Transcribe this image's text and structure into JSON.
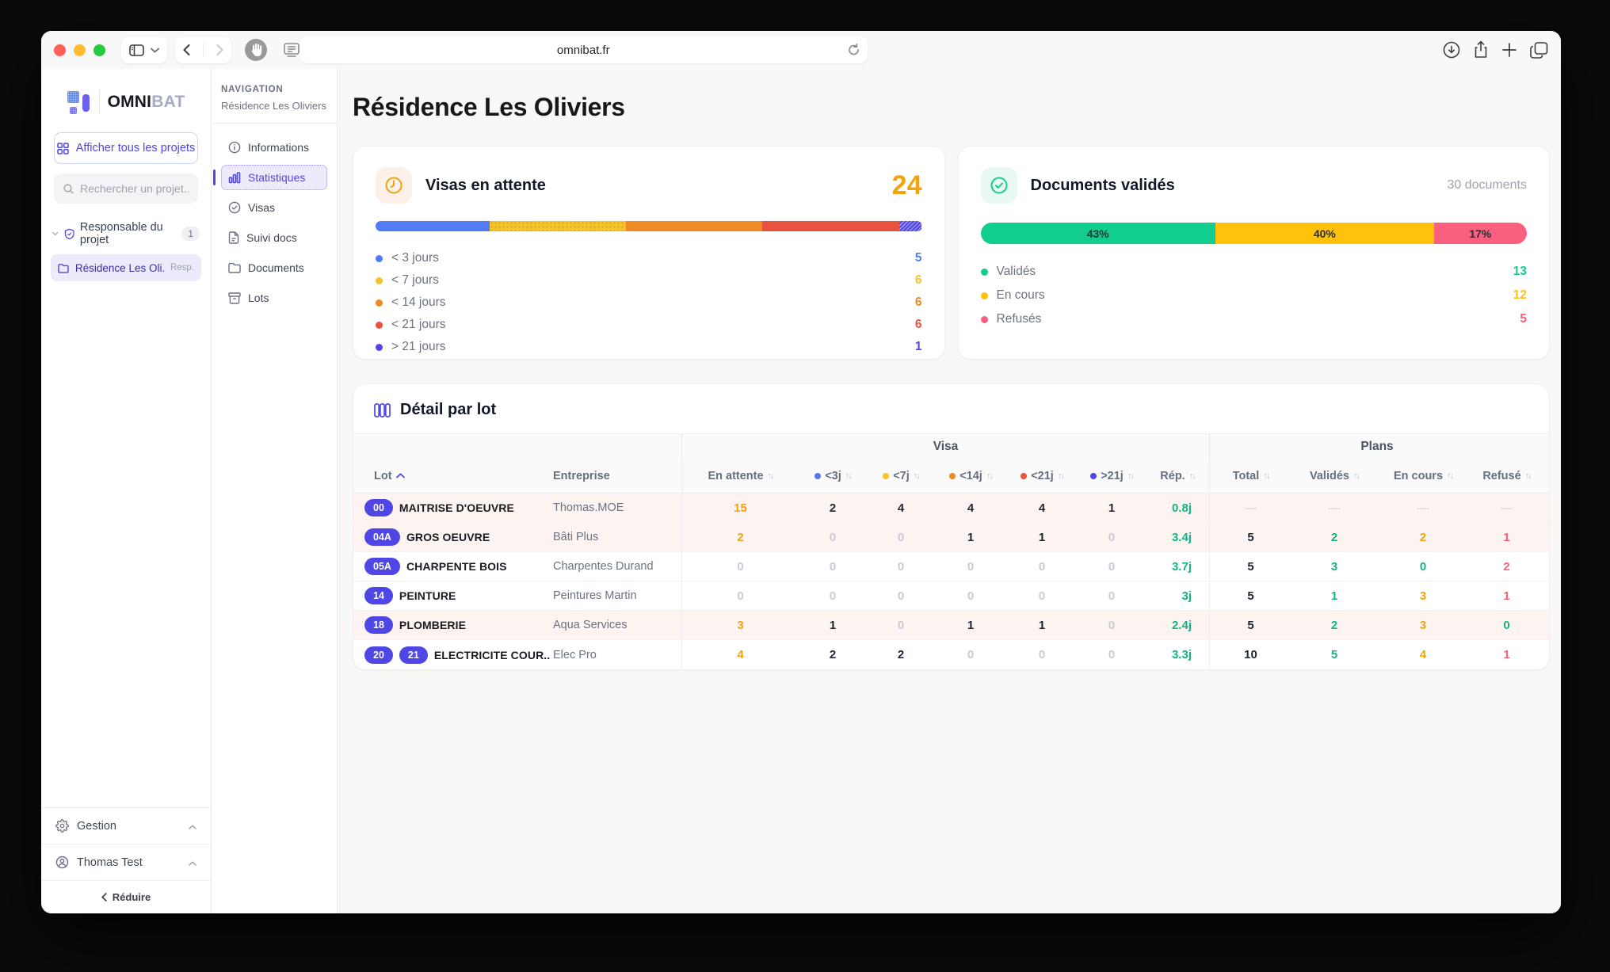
{
  "browser": {
    "url": "omnibat.fr"
  },
  "sidebar": {
    "logo_main": "OMNI",
    "logo_accent": "BAT",
    "show_all": "Afficher tous les projets",
    "search_placeholder": "Rechercher un projet...",
    "group_label": "Responsable du projet",
    "group_count": "1",
    "project_name": "Résidence Les Oli...",
    "project_tag": "Resp.",
    "footer_items": [
      {
        "label": "Gestion",
        "icon": "gear"
      },
      {
        "label": "Thomas Test",
        "icon": "user"
      }
    ],
    "collapse_label": "Réduire"
  },
  "nav": {
    "section_label": "NAVIGATION",
    "project": "Résidence Les Oliviers",
    "items": [
      {
        "label": "Informations",
        "icon": "info",
        "active": false
      },
      {
        "label": "Statistiques",
        "icon": "chart",
        "active": true
      },
      {
        "label": "Visas",
        "icon": "check-circle",
        "active": false
      },
      {
        "label": "Suivi docs",
        "icon": "file",
        "active": false
      },
      {
        "label": "Documents",
        "icon": "folder",
        "active": false
      },
      {
        "label": "Lots",
        "icon": "box",
        "active": false
      }
    ]
  },
  "main": {
    "page_title": "Résidence Les Oliviers",
    "visas_card": {
      "title": "Visas en attente",
      "total": "24",
      "segments": [
        {
          "label": "< 3 jours",
          "value": 5,
          "color": "#527BF4",
          "pattern": "none"
        },
        {
          "label": "< 7 jours",
          "value": 6,
          "color": "#F6C32B",
          "pattern": "dots"
        },
        {
          "label": "< 14 jours",
          "value": 6,
          "color": "#F08A24",
          "pattern": "none"
        },
        {
          "label": "< 21 jours",
          "value": 6,
          "color": "#E8533F",
          "pattern": "none"
        },
        {
          "label": "> 21 jours",
          "value": 1,
          "color": "#4F46E5",
          "pattern": "hatch"
        }
      ]
    },
    "docs_card": {
      "title": "Documents validés",
      "subtitle": "30 documents",
      "segments": [
        {
          "label": "Validés",
          "value": "13",
          "pct": 43,
          "pct_label": "43%",
          "color": "#12CE8E"
        },
        {
          "label": "En cours",
          "value": "12",
          "pct": 40,
          "pct_label": "40%",
          "color": "#FFC10A"
        },
        {
          "label": "Refusés",
          "value": "5",
          "pct": 17,
          "pct_label": "17%",
          "color": "#FA5F7E"
        }
      ]
    },
    "table": {
      "title": "Détail par lot",
      "group_visa": "Visa",
      "group_plans": "Plans",
      "col_lot": "Lot",
      "col_entreprise": "Entreprise",
      "visa_cols": [
        {
          "label": "En attente",
          "dot": ""
        },
        {
          "label": "<3j",
          "dot": "#527BF4"
        },
        {
          "label": "<7j",
          "dot": "#F6C32B"
        },
        {
          "label": "<14j",
          "dot": "#F08A24"
        },
        {
          "label": "<21j",
          "dot": "#E8533F"
        },
        {
          "label": ">21j",
          "dot": "#4F46E5"
        },
        {
          "label": "Rép.",
          "dot": ""
        }
      ],
      "plans_cols": [
        "Total",
        "Validés",
        "En cours",
        "Refusé"
      ],
      "rows": [
        {
          "badges": [
            "00"
          ],
          "name": "MAITRISE D'OEUVRE",
          "entreprise": "Thomas.MOE",
          "tint": true,
          "cells": [
            {
              "v": "15",
              "k": "amber"
            },
            {
              "v": "2",
              "k": "dark"
            },
            {
              "v": "4",
              "k": "dark"
            },
            {
              "v": "4",
              "k": "dark"
            },
            {
              "v": "4",
              "k": "dark"
            },
            {
              "v": "1",
              "k": "dark"
            },
            {
              "v": "0.8j",
              "k": "green"
            },
            {
              "v": "—",
              "k": "dash"
            },
            {
              "v": "—",
              "k": "dash"
            },
            {
              "v": "—",
              "k": "dash"
            },
            {
              "v": "—",
              "k": "dash"
            }
          ]
        },
        {
          "badges": [
            "04A"
          ],
          "name": "GROS OEUVRE",
          "entreprise": "Bâti Plus",
          "tint": true,
          "cells": [
            {
              "v": "2",
              "k": "amber"
            },
            {
              "v": "0",
              "k": "muted"
            },
            {
              "v": "0",
              "k": "muted"
            },
            {
              "v": "1",
              "k": "dark"
            },
            {
              "v": "1",
              "k": "dark"
            },
            {
              "v": "0",
              "k": "muted"
            },
            {
              "v": "3.4j",
              "k": "green"
            },
            {
              "v": "5",
              "k": "dark"
            },
            {
              "v": "2",
              "k": "green"
            },
            {
              "v": "2",
              "k": "amber"
            },
            {
              "v": "1",
              "k": "pink"
            }
          ]
        },
        {
          "badges": [
            "05A"
          ],
          "name": "CHARPENTE BOIS",
          "entreprise": "Charpentes Durand",
          "tint": false,
          "cells": [
            {
              "v": "0",
              "k": "muted"
            },
            {
              "v": "0",
              "k": "muted"
            },
            {
              "v": "0",
              "k": "muted"
            },
            {
              "v": "0",
              "k": "muted"
            },
            {
              "v": "0",
              "k": "muted"
            },
            {
              "v": "0",
              "k": "muted"
            },
            {
              "v": "3.7j",
              "k": "green"
            },
            {
              "v": "5",
              "k": "dark"
            },
            {
              "v": "3",
              "k": "green"
            },
            {
              "v": "0",
              "k": "green"
            },
            {
              "v": "2",
              "k": "pink"
            }
          ]
        },
        {
          "badges": [
            "14"
          ],
          "name": "PEINTURE",
          "entreprise": "Peintures Martin",
          "tint": false,
          "cells": [
            {
              "v": "0",
              "k": "muted"
            },
            {
              "v": "0",
              "k": "muted"
            },
            {
              "v": "0",
              "k": "muted"
            },
            {
              "v": "0",
              "k": "muted"
            },
            {
              "v": "0",
              "k": "muted"
            },
            {
              "v": "0",
              "k": "muted"
            },
            {
              "v": "3j",
              "k": "green"
            },
            {
              "v": "5",
              "k": "dark"
            },
            {
              "v": "1",
              "k": "green"
            },
            {
              "v": "3",
              "k": "amber"
            },
            {
              "v": "1",
              "k": "pink"
            }
          ]
        },
        {
          "badges": [
            "18"
          ],
          "name": "PLOMBERIE",
          "entreprise": "Aqua Services",
          "tint": true,
          "cells": [
            {
              "v": "3",
              "k": "amber"
            },
            {
              "v": "1",
              "k": "dark"
            },
            {
              "v": "0",
              "k": "muted"
            },
            {
              "v": "1",
              "k": "dark"
            },
            {
              "v": "1",
              "k": "dark"
            },
            {
              "v": "0",
              "k": "muted"
            },
            {
              "v": "2.4j",
              "k": "green"
            },
            {
              "v": "5",
              "k": "dark"
            },
            {
              "v": "2",
              "k": "green"
            },
            {
              "v": "3",
              "k": "amber"
            },
            {
              "v": "0",
              "k": "green"
            }
          ]
        },
        {
          "badges": [
            "20",
            "21"
          ],
          "name": "ELECTRICITE COUR...",
          "entreprise": "Elec Pro",
          "tint": false,
          "cells": [
            {
              "v": "4",
              "k": "amber"
            },
            {
              "v": "2",
              "k": "dark"
            },
            {
              "v": "2",
              "k": "dark"
            },
            {
              "v": "0",
              "k": "muted"
            },
            {
              "v": "0",
              "k": "muted"
            },
            {
              "v": "0",
              "k": "muted"
            },
            {
              "v": "3.3j",
              "k": "green"
            },
            {
              "v": "10",
              "k": "dark"
            },
            {
              "v": "5",
              "k": "green"
            },
            {
              "v": "4",
              "k": "amber"
            },
            {
              "v": "1",
              "k": "pink"
            }
          ]
        }
      ]
    }
  }
}
